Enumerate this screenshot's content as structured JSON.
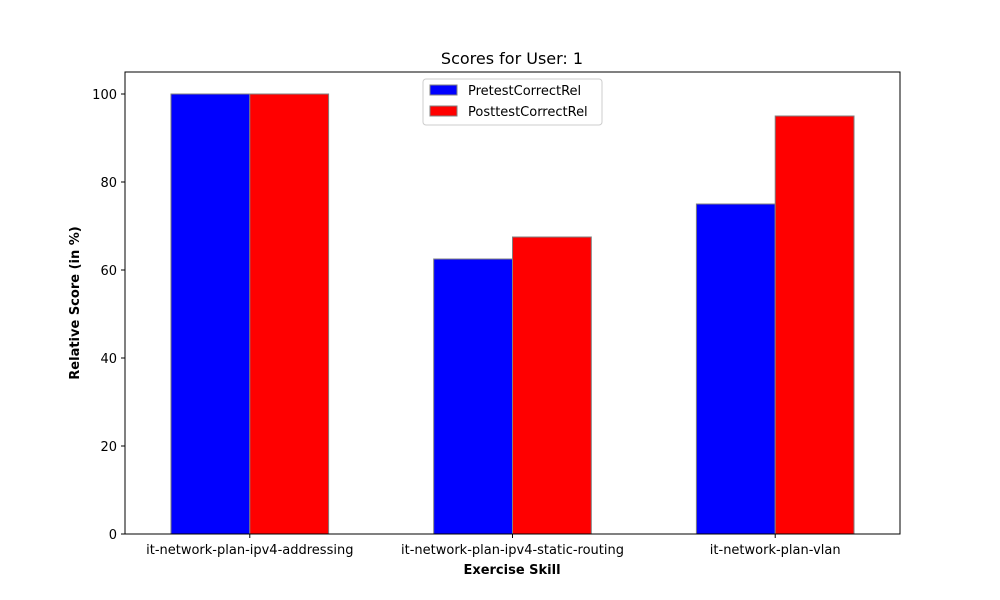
{
  "chart_data": {
    "type": "bar",
    "title": "Scores for User: 1",
    "xlabel": "Exercise Skill",
    "ylabel": "Relative Score (in %)",
    "categories": [
      "it-network-plan-ipv4-addressing",
      "it-network-plan-ipv4-static-routing",
      "it-network-plan-vlan"
    ],
    "series": [
      {
        "name": "PretestCorrectRel",
        "color": "#0000ff",
        "values": [
          100,
          62.5,
          75
        ]
      },
      {
        "name": "PosttestCorrectRel",
        "color": "#ff0000",
        "values": [
          100,
          67.5,
          95
        ]
      }
    ],
    "ylim": [
      0,
      105
    ],
    "yticks": [
      0,
      20,
      40,
      60,
      80,
      100
    ],
    "grid": false,
    "legend_position": "upper center",
    "bar_edge_color": "#808080"
  }
}
